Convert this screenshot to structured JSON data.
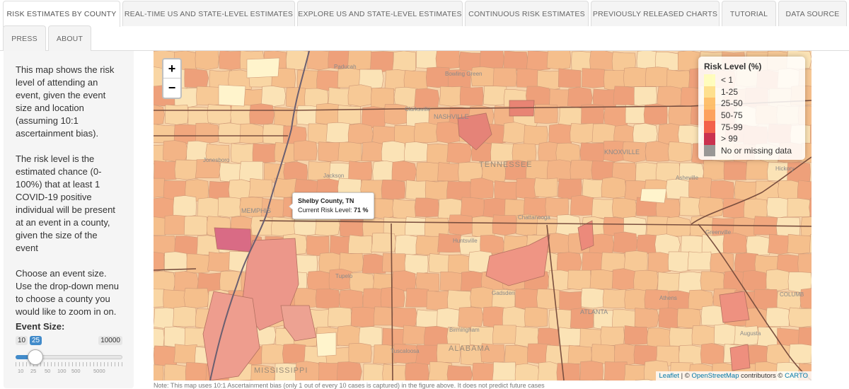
{
  "tabs": [
    {
      "label": "RISK ESTIMATES BY COUNTY",
      "active": true
    },
    {
      "label": "REAL-TIME US AND STATE-LEVEL ESTIMATES"
    },
    {
      "label": "EXPLORE US AND STATE-LEVEL ESTIMATES"
    },
    {
      "label": "CONTINUOUS RISK ESTIMATES"
    },
    {
      "label": "PREVIOUSLY RELEASED CHARTS"
    },
    {
      "label": "TUTORIAL"
    },
    {
      "label": "DATA SOURCE"
    },
    {
      "label": "PRESS"
    },
    {
      "label": "ABOUT"
    }
  ],
  "sidebar": {
    "intro": "This map shows the risk level of attending an event, given the event size and location (assuming 10:1 ascertainment bias).",
    "definition": "The risk level is the estimated chance (0-100%) that at least 1 COVID-19 positive individual will be present at an event in a county, given the size of the event",
    "instructions": "Choose an event size. Use the drop-down menu to choose a county you would like to zoom in on.",
    "event_size_label": "Event Size:",
    "slider": {
      "min": "10",
      "max": "10000",
      "value": "25",
      "ticks": [
        "10",
        "25",
        "50",
        "100",
        "500",
        "5000"
      ]
    }
  },
  "map": {
    "zoom_in": "+",
    "zoom_out": "−",
    "legend": {
      "title": "Risk Level (%)",
      "items": [
        {
          "label": "< 1",
          "color": "#ffffb2"
        },
        {
          "label": "1-25",
          "color": "#fed976"
        },
        {
          "label": "25-50",
          "color": "#feb24c"
        },
        {
          "label": "50-75",
          "color": "#fd8d3c"
        },
        {
          "label": "75-99",
          "color": "#f03b20"
        },
        {
          "label": "> 99",
          "color": "#bd0026"
        },
        {
          "label": "No or missing data",
          "color": "#808080"
        }
      ]
    },
    "tooltip": {
      "title": "Shelby County, TN",
      "label": "Current Risk Level:",
      "value": "71 %"
    },
    "attribution": {
      "leaflet": "Leaflet",
      "sep1": " | © ",
      "osm": "OpenStreetMap",
      "mid": " contributors © ",
      "carto": "CARTO"
    },
    "labels": [
      "Paducah",
      "Bowling Green",
      "Clarksville",
      "NASHVILLE",
      "KNOXVILLE",
      "Jonesboro",
      "Jackson",
      "TENNESSEE",
      "Asheville",
      "Hickory",
      "MEMPHIS",
      "Chattanooga",
      "Greenville",
      "Huntsville",
      "Tupelo",
      "Gadsden",
      "ATLANTA",
      "Athens",
      "COLUMB",
      "Birmingham",
      "Augusta",
      "Tuscaloosa",
      "ALABAMA",
      "MISSISSIPPI"
    ]
  },
  "footnote": "Note: This map uses 10:1 Ascertainment bias (only 1 out of every 10 cases is captured) in the figure above. It does not predict future cases"
}
